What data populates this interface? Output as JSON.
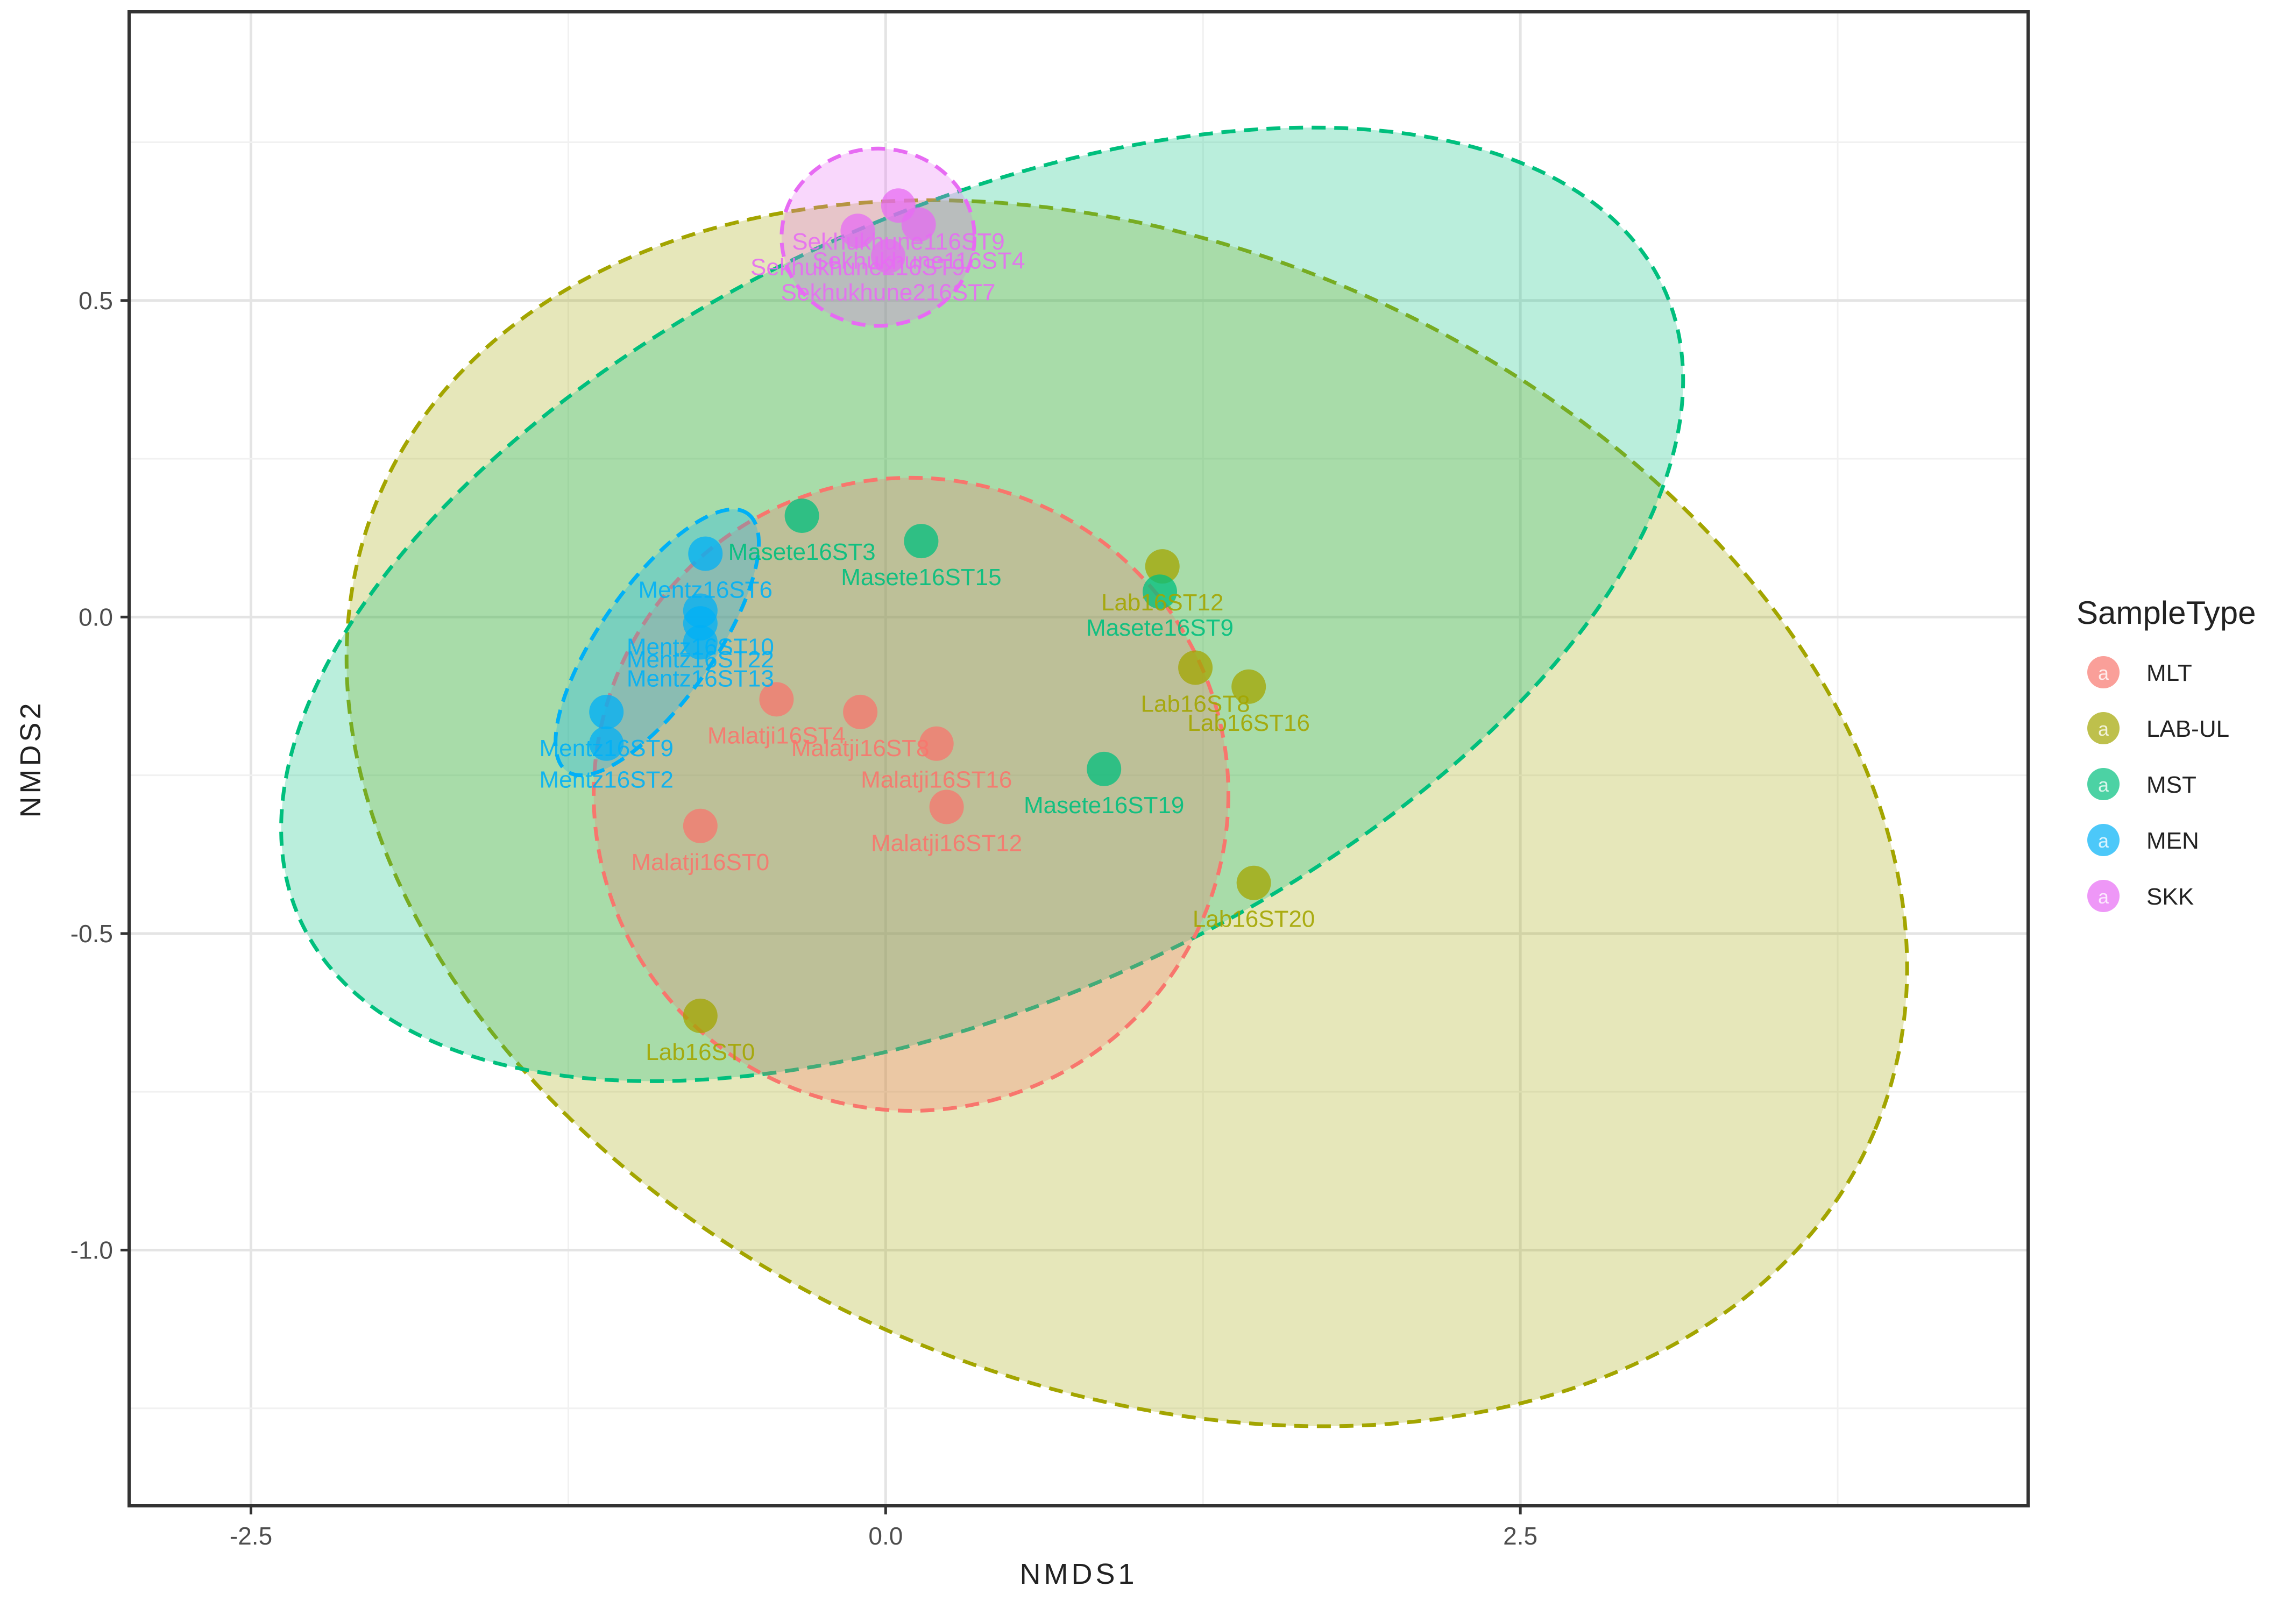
{
  "chart_data": {
    "type": "scatter",
    "title": "",
    "xlabel": "NMDS1",
    "ylabel": "NMDS2",
    "xlim": [
      -2.98,
      4.5
    ],
    "ylim": [
      -1.404,
      0.956
    ],
    "grid": true,
    "x_ticks": [
      -2.5,
      0.0,
      2.5
    ],
    "x_tick_labels": [
      "-2.5",
      "0.0",
      "2.5"
    ],
    "y_ticks": [
      -1.0,
      -0.5,
      0.0,
      0.5
    ],
    "y_tick_labels": [
      "-1.0",
      "-0.5",
      "0.0",
      "0.5"
    ],
    "legend": {
      "title": "SampleType",
      "placement": "right",
      "entries": [
        {
          "label": "MLT",
          "color": "#F8766D"
        },
        {
          "label": "LAB-UL",
          "color": "#A3A500"
        },
        {
          "label": "MST",
          "color": "#00BF7D"
        },
        {
          "label": "MEN",
          "color": "#00B0F6"
        },
        {
          "label": "SKK",
          "color": "#E76BF3"
        }
      ]
    },
    "series": [
      {
        "name": "MLT",
        "color": "#F8766D",
        "label_color": "#F8766D",
        "ellipse": {
          "cx": 0.1,
          "cy": -0.28,
          "rx": 1.25,
          "ry": 0.5,
          "angle_deg": 0
        },
        "points": [
          {
            "label": "Malatji16ST0",
            "x": -0.73,
            "y": -0.33
          },
          {
            "label": "Malatji16ST4",
            "x": -0.43,
            "y": -0.13
          },
          {
            "label": "Malatji16ST8",
            "x": -0.1,
            "y": -0.15
          },
          {
            "label": "Malatji16ST16",
            "x": 0.2,
            "y": -0.2
          },
          {
            "label": "Malatji16ST12",
            "x": 0.24,
            "y": -0.3
          }
        ]
      },
      {
        "name": "LAB-UL",
        "color": "#A3A500",
        "label_color": "#A3A500",
        "ellipse": {
          "cx": 0.95,
          "cy": -0.31,
          "rx": 3.2,
          "ry": 0.9,
          "angle_deg": -23
        },
        "points": [
          {
            "label": "Lab16ST0",
            "x": -0.73,
            "y": -0.63
          },
          {
            "label": "Lab16ST12",
            "x": 1.09,
            "y": 0.08
          },
          {
            "label": "Lab16ST8",
            "x": 1.22,
            "y": -0.08
          },
          {
            "label": "Lab16ST16",
            "x": 1.43,
            "y": -0.11
          },
          {
            "label": "Lab16ST20",
            "x": 1.45,
            "y": -0.42
          }
        ]
      },
      {
        "name": "MST",
        "color": "#00BF7D",
        "label_color": "#00BF7D",
        "ellipse": {
          "cx": 0.38,
          "cy": 0.02,
          "rx": 2.96,
          "ry": 0.62,
          "angle_deg": 25
        },
        "points": [
          {
            "label": "Masete16ST3",
            "x": -0.33,
            "y": 0.16
          },
          {
            "label": "Masete16ST15",
            "x": 0.14,
            "y": 0.12
          },
          {
            "label": "Masete16ST9",
            "x": 1.08,
            "y": 0.04
          },
          {
            "label": "Masete16ST19",
            "x": 0.86,
            "y": -0.24
          }
        ]
      },
      {
        "name": "MEN",
        "color": "#00B0F6",
        "label_color": "#00B0F6",
        "ellipse": {
          "cx": -0.9,
          "cy": -0.04,
          "rx": 0.62,
          "ry": 0.09,
          "angle_deg": 55
        },
        "points": [
          {
            "label": "Mentz16ST6",
            "x": -0.71,
            "y": 0.1
          },
          {
            "label": "Mentz16ST10",
            "x": -0.73,
            "y": 0.01
          },
          {
            "label": "Mentz16ST22",
            "x": -0.73,
            "y": -0.01
          },
          {
            "label": "Mentz16ST13",
            "x": -0.73,
            "y": -0.04
          },
          {
            "label": "Mentz16ST9",
            "x": -1.1,
            "y": -0.15
          },
          {
            "label": "Mentz16ST2",
            "x": -1.1,
            "y": -0.2
          }
        ]
      },
      {
        "name": "SKK",
        "color": "#E76BF3",
        "label_color": "#E76BF3",
        "ellipse": {
          "cx": -0.03,
          "cy": 0.6,
          "rx": 0.38,
          "ry": 0.14,
          "angle_deg": 0
        },
        "points": [
          {
            "label": "Sekhukhune116ST9",
            "x": 0.05,
            "y": 0.65
          },
          {
            "label": "Sekhukhune116ST4",
            "x": 0.13,
            "y": 0.62
          },
          {
            "label": "Sekhukhune216ST9",
            "x": -0.11,
            "y": 0.61
          },
          {
            "label": "Sekhukhune216ST7",
            "x": 0.01,
            "y": 0.57
          }
        ]
      }
    ]
  }
}
